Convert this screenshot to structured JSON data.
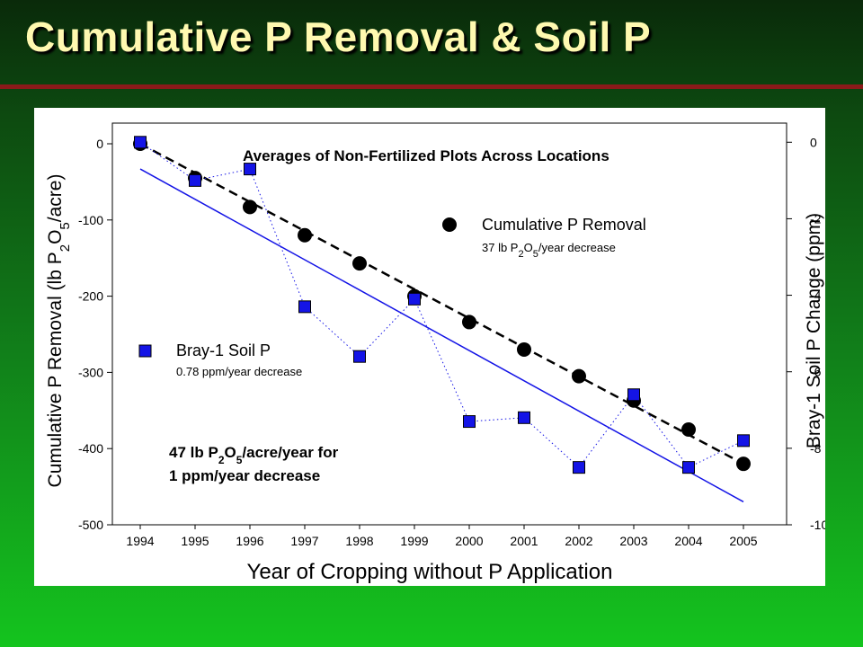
{
  "slide": {
    "title": "Cumulative P Removal & Soil P"
  },
  "chart_data": {
    "type": "scatter",
    "xlabel": "Year of Cropping without P Application",
    "ylabel_left": {
      "text_parts": [
        "Cumulative P Removal (lb P",
        "2",
        "O",
        "5",
        "/acre)"
      ]
    },
    "ylabel_right": "Bray-1 Soil P Change (ppm)",
    "categories": [
      "1994",
      "1995",
      "1996",
      "1997",
      "1998",
      "1999",
      "2000",
      "2001",
      "2002",
      "2003",
      "2004",
      "2005"
    ],
    "y_left_lim": [
      -500,
      0
    ],
    "y_left_ticks": [
      0,
      -100,
      -200,
      -300,
      -400,
      -500
    ],
    "y_left_tick_labels": [
      "0",
      "-100",
      "-200",
      "-300",
      "-400",
      "-500"
    ],
    "y_right_lim": [
      -10,
      0.5
    ],
    "y_right_ticks": [
      0,
      -2,
      -4,
      -6,
      -8,
      -10
    ],
    "y_right_tick_labels": [
      "0",
      "-2",
      "-4",
      "-6",
      "-8",
      "-10"
    ],
    "grid": false,
    "annotation_top": "Averages of Non-Fertilized Plots Across Locations",
    "annotation_ratio": {
      "line1_parts": [
        "47 lb P",
        "2",
        "O",
        "5",
        "/acre/year for"
      ],
      "line2": "1 ppm/year decrease"
    },
    "series": [
      {
        "name": "Cumulative P Removal",
        "axis": "left",
        "marker": "circle",
        "color": "#000000",
        "values": [
          0,
          -45,
          -83,
          -120,
          -157,
          -200,
          -234,
          -270,
          -305,
          -337,
          -375,
          -420
        ],
        "legend_note_parts": [
          "37 lb P",
          "2",
          "O",
          "5",
          "/year decrease"
        ]
      },
      {
        "name": "Bray-1 Soil P",
        "axis": "right",
        "marker": "square",
        "color": "#1414e6",
        "values": [
          0.0,
          -1.0,
          -0.7,
          -4.3,
          -5.6,
          -4.1,
          -7.3,
          -7.2,
          -8.5,
          -6.6,
          -8.5,
          -7.8
        ],
        "legend_note": "0.78 ppm/year decrease"
      }
    ],
    "trendlines": [
      {
        "series": "Cumulative P Removal",
        "style": "dashed",
        "color": "#000000",
        "from": {
          "x": "1994",
          "y": 0
        },
        "to": {
          "x": "2005",
          "y": -420
        }
      },
      {
        "series": "Bray-1 Soil P",
        "style": "solid",
        "color": "#1414e6",
        "from": {
          "x": "1994",
          "y": -0.7
        },
        "to": {
          "x": "2005",
          "y": -9.4
        }
      }
    ]
  }
}
